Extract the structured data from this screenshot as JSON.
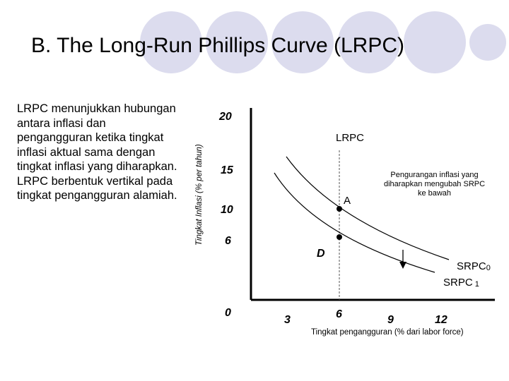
{
  "title": "B. The Long-Run Phillips Curve (LRPC)",
  "description": "LRPC  menunjukkan hubungan antara inflasi dan pengangguran ketika tingkat inflasi aktual sama dengan tingkat inflasi yang diharapkan. LRPC berbentuk vertikal pada tingkat pengangguran alamiah.",
  "diagram": {
    "y_axis_label": "Tingkat Inflasi (% per tahun)",
    "x_axis_label": "Tingkat pengangguran (% dari labor force)",
    "y_ticks": [
      "20",
      "15",
      "10",
      "6",
      "0"
    ],
    "x_ticks": [
      "3",
      "6",
      "9",
      "12"
    ],
    "curve_labels": {
      "lrpc": "LRPC",
      "srpc0": "SRPC",
      "srpc0_sub": "0",
      "srpc1": "SRPC",
      "srpc1_sub": "1"
    },
    "points": {
      "a": "A",
      "d": "D"
    },
    "annotation": "Pengurangan inflasi yang diharapkan mengubah SRPC ke bawah"
  },
  "colors": {
    "decorative_circles": "#d9d9ee",
    "axis": "#000000",
    "lrpc_line": "#555555"
  }
}
